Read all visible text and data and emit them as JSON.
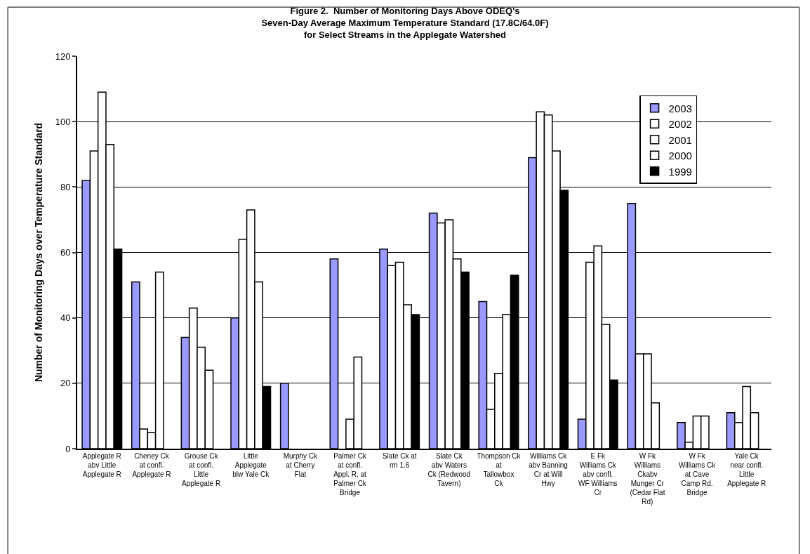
{
  "chart_data": {
    "type": "bar",
    "title": "Figure 2.  Number of Monitoring Days Above ODEQ's\nSeven-Day Average Maximum Temperature Standard (17.8C/64.0F)\nfor Select Streams in the Applegate Watershed",
    "ylabel": "Number of Monitoring Days over Temperature Standard",
    "categories": [
      "Applegate R abv Little Applegate R",
      "Cheney Ck at confl. Applegate R",
      "Grouse Ck at confl. Little Applegate R",
      "Little Applegate blw Yale Ck",
      "Murphy Ck at Cherry Flat",
      "Palmer Ck at confl. Appl. R. at Palmer Ck Bridge",
      "Slate Ck at rm 1.6",
      "Slate Ck abv Waters Ck (Redwood Tavern)",
      "Thompson Ck at Tallowbox Ck",
      "Williams Ck abv Banning Cr at Will Hwy",
      "E Fk Williams Ck abv confl. WF Williams Cr",
      "W Fk Williams Ckabv Munger Cr (Cedar Flat Rd)",
      "W Fk Williams Ck at Cave Camp Rd. Bridge",
      "Yale Ck near confl. Little Applegate R"
    ],
    "series": [
      {
        "name": "2003",
        "color": "#9999ff",
        "values": [
          82,
          51,
          34,
          40,
          20,
          58,
          61,
          72,
          45,
          89,
          9,
          75,
          8,
          11
        ]
      },
      {
        "name": "2002",
        "color": "#ffffff",
        "values": [
          91,
          6,
          43,
          64,
          null,
          null,
          56,
          69,
          12,
          103,
          57,
          29,
          2,
          8
        ]
      },
      {
        "name": "2001",
        "color": "#ffffff",
        "values": [
          109,
          5,
          31,
          73,
          null,
          9,
          57,
          70,
          23,
          102,
          62,
          29,
          10,
          19
        ]
      },
      {
        "name": "2000",
        "color": "#ffffff",
        "values": [
          93,
          54,
          24,
          51,
          null,
          28,
          44,
          58,
          41,
          91,
          38,
          14,
          10,
          11
        ]
      },
      {
        "name": "1999",
        "color": "#000000",
        "values": [
          61,
          null,
          null,
          19,
          null,
          null,
          41,
          54,
          53,
          79,
          21,
          null,
          null,
          null
        ]
      }
    ],
    "ylim": [
      0,
      120
    ],
    "yticks": [
      0,
      20,
      40,
      60,
      80,
      100,
      120
    ],
    "grid": "y",
    "legend": "top right"
  }
}
